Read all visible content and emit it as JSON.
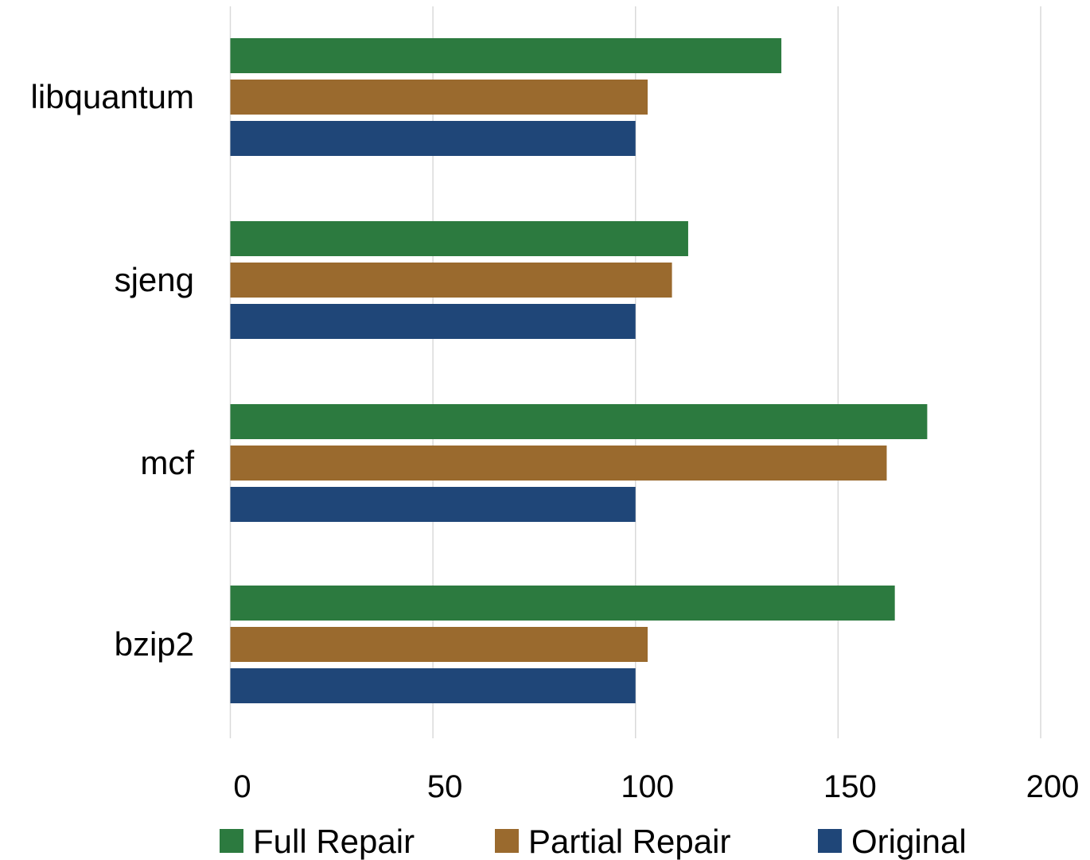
{
  "chart_data": {
    "type": "bar",
    "orientation": "horizontal",
    "categories": [
      "libquantum",
      "sjeng",
      "mcf",
      "bzip2"
    ],
    "series": [
      {
        "name": "Full Repair",
        "color": "#2c7a3f",
        "values": [
          136,
          113,
          172,
          164
        ]
      },
      {
        "name": "Partial Repair",
        "color": "#9a6a2e",
        "values": [
          103,
          109,
          162,
          103
        ]
      },
      {
        "name": "Original",
        "color": "#1f4678",
        "values": [
          100,
          100,
          100,
          100
        ]
      }
    ],
    "title": "",
    "xlabel": "",
    "ylabel": "",
    "xlim": [
      0,
      200
    ],
    "xticks": [
      "0",
      "50",
      "100",
      "150",
      "200"
    ],
    "grid": "vertical",
    "legend_position": "bottom"
  }
}
